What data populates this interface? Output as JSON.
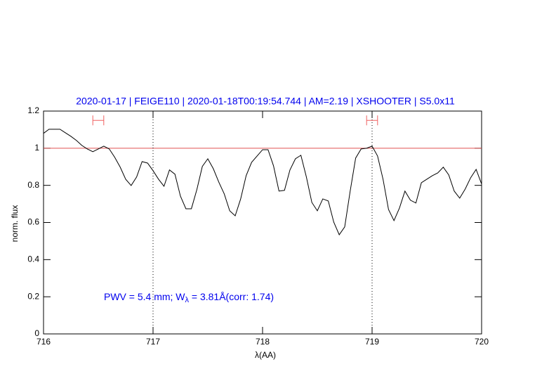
{
  "chart_data": {
    "type": "line",
    "title": "2020-01-17 | FEIGE110 | 2020-01-18T00:19:54.744 | AM=2.19 | XSHOOTER | S5.0x11",
    "xlabel": "λ(AA)",
    "ylabel": "norm. flux",
    "annotation": [
      "PWV = 5.4 mm; W",
      "λ",
      " = 3.81Å(corr: 1.74)"
    ],
    "xlim": [
      716,
      720
    ],
    "ylim": [
      0,
      1.2
    ],
    "xticks": [
      716,
      717,
      718,
      719,
      720
    ],
    "yticks": [
      0,
      0.2,
      0.4,
      0.6,
      0.8,
      1,
      1.2
    ],
    "hline": 1,
    "hline_color": "#e05050",
    "vlines": [
      717,
      719
    ],
    "ranges": [
      {
        "x": [
          716.45,
          716.55
        ],
        "y": 1.15
      },
      {
        "x": [
          718.95,
          719.05
        ],
        "y": 1.15
      }
    ],
    "range_color": "#f06060",
    "color": "#000000",
    "text_color": "#0000ee",
    "x": [
      716.0,
      716.05,
      716.1,
      716.15,
      716.2,
      716.25,
      716.3,
      716.35,
      716.4,
      716.45,
      716.5,
      716.55,
      716.6,
      716.65,
      716.7,
      716.75,
      716.8,
      716.85,
      716.9,
      716.95,
      717.0,
      717.05,
      717.1,
      717.15,
      717.2,
      717.25,
      717.3,
      717.35,
      717.4,
      717.45,
      717.5,
      717.55,
      717.6,
      717.65,
      717.7,
      717.75,
      717.8,
      717.85,
      717.9,
      717.95,
      718.0,
      718.05,
      718.1,
      718.15,
      718.2,
      718.25,
      718.3,
      718.35,
      718.4,
      718.45,
      718.5,
      718.55,
      718.6,
      718.65,
      718.7,
      718.75,
      718.8,
      718.85,
      718.9,
      718.95,
      719.0,
      719.05,
      719.1,
      719.15,
      719.2,
      719.25,
      719.3,
      719.35,
      719.4,
      719.45,
      719.5,
      719.55,
      719.6,
      719.65,
      719.7,
      719.75,
      719.8,
      719.85,
      719.9,
      719.95,
      720.0
    ],
    "values": [
      1.08,
      1.102,
      1.102,
      1.102,
      1.083,
      1.064,
      1.042,
      1.015,
      0.996,
      0.981,
      0.996,
      1.011,
      0.996,
      0.951,
      0.898,
      0.833,
      0.799,
      0.845,
      0.928,
      0.92,
      0.879,
      0.833,
      0.795,
      0.883,
      0.86,
      0.742,
      0.674,
      0.674,
      0.777,
      0.902,
      0.943,
      0.89,
      0.818,
      0.754,
      0.663,
      0.636,
      0.727,
      0.852,
      0.924,
      0.958,
      0.992,
      0.992,
      0.905,
      0.769,
      0.773,
      0.883,
      0.943,
      0.962,
      0.845,
      0.708,
      0.663,
      0.727,
      0.716,
      0.602,
      0.534,
      0.576,
      0.769,
      0.947,
      0.996,
      1.0,
      1.011,
      0.958,
      0.833,
      0.67,
      0.61,
      0.678,
      0.769,
      0.72,
      0.705,
      0.814,
      0.833,
      0.852,
      0.867,
      0.898,
      0.856,
      0.769,
      0.731,
      0.78,
      0.841,
      0.886,
      0.807
    ]
  }
}
